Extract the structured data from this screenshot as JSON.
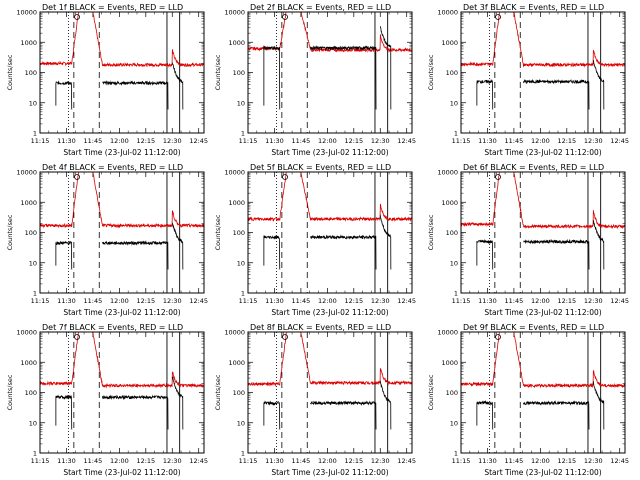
{
  "chart_data": {
    "type": "line",
    "y_scale": "log",
    "ylim": [
      1,
      10000
    ],
    "xlim_minutes": [
      11.25,
      12.8
    ],
    "x_tick_labels": [
      "11:15",
      "11:30",
      "11:45",
      "12:00",
      "12:15",
      "12:30",
      "12:45"
    ],
    "x_tick_values_hours": [
      11.25,
      11.5,
      11.75,
      12.0,
      12.25,
      12.5,
      12.75
    ],
    "y_tick_labels": [
      "1",
      "10",
      "100",
      "1000",
      "10000"
    ],
    "y_tick_values": [
      1,
      10,
      100,
      1000,
      10000
    ],
    "ylabel": "Counts/sec",
    "xlabel": "Start Time (23-Jul-02 11:12:00)",
    "series_colors": {
      "events": "#000000",
      "lld": "#dd0000"
    },
    "panels": [
      {
        "title": "Det 1f BLACK = Events, RED = LLD",
        "events_level": 45,
        "lld_level": 200,
        "lld_after": 180,
        "solid_lines": [
          12.45,
          12.57
        ],
        "dashed_lines": [
          11.57,
          11.81
        ],
        "dotted_lines": [
          11.52
        ]
      },
      {
        "title": "Det 2f BLACK = Events, RED = LLD",
        "events_level": 650,
        "lld_level": 620,
        "lld_after": 560,
        "solid_lines": [
          12.45,
          12.57
        ],
        "dashed_lines": [
          11.57,
          11.81
        ],
        "dotted_lines": [
          11.52
        ]
      },
      {
        "title": "Det 3f BLACK = Events, RED = LLD",
        "events_level": 50,
        "lld_level": 190,
        "lld_after": 180,
        "solid_lines": [
          12.45,
          12.57
        ],
        "dashed_lines": [
          11.57,
          11.81
        ],
        "dotted_lines": [
          11.52
        ]
      },
      {
        "title": "Det 4f BLACK = Events, RED = LLD",
        "events_level": 45,
        "lld_level": 170,
        "lld_after": 170,
        "solid_lines": [
          12.45,
          12.57
        ],
        "dashed_lines": [
          11.57,
          11.81
        ],
        "dotted_lines": [
          11.52
        ]
      },
      {
        "title": "Det 5f BLACK = Events, RED = LLD",
        "events_level": 70,
        "lld_level": 280,
        "lld_after": 280,
        "solid_lines": [
          12.45,
          12.57
        ],
        "dashed_lines": [
          11.57,
          11.81
        ],
        "dotted_lines": [
          11.52
        ]
      },
      {
        "title": "Det 6f BLACK = Events, RED = LLD",
        "events_level": 50,
        "lld_level": 190,
        "lld_after": 160,
        "solid_lines": [
          12.45,
          12.57
        ],
        "dashed_lines": [
          11.57,
          11.81
        ],
        "dotted_lines": [
          11.52
        ]
      },
      {
        "title": "Det 7f BLACK = Events, RED = LLD",
        "events_level": 70,
        "lld_level": 200,
        "lld_after": 170,
        "solid_lines": [
          12.45,
          12.57
        ],
        "dashed_lines": [
          11.57,
          11.81
        ],
        "dotted_lines": [
          11.52
        ]
      },
      {
        "title": "Det 8f BLACK = Events, RED = LLD",
        "events_level": 45,
        "lld_level": 190,
        "lld_after": 210,
        "solid_lines": [
          12.45,
          12.57
        ],
        "dashed_lines": [
          11.57,
          11.81
        ],
        "dotted_lines": [
          11.52
        ]
      },
      {
        "title": "Det 9f BLACK = Events, RED = LLD",
        "events_level": 45,
        "lld_level": 190,
        "lld_after": 170,
        "solid_lines": [
          12.45,
          12.57
        ],
        "dashed_lines": [
          11.57,
          11.81
        ],
        "dotted_lines": [
          11.52
        ]
      }
    ]
  }
}
